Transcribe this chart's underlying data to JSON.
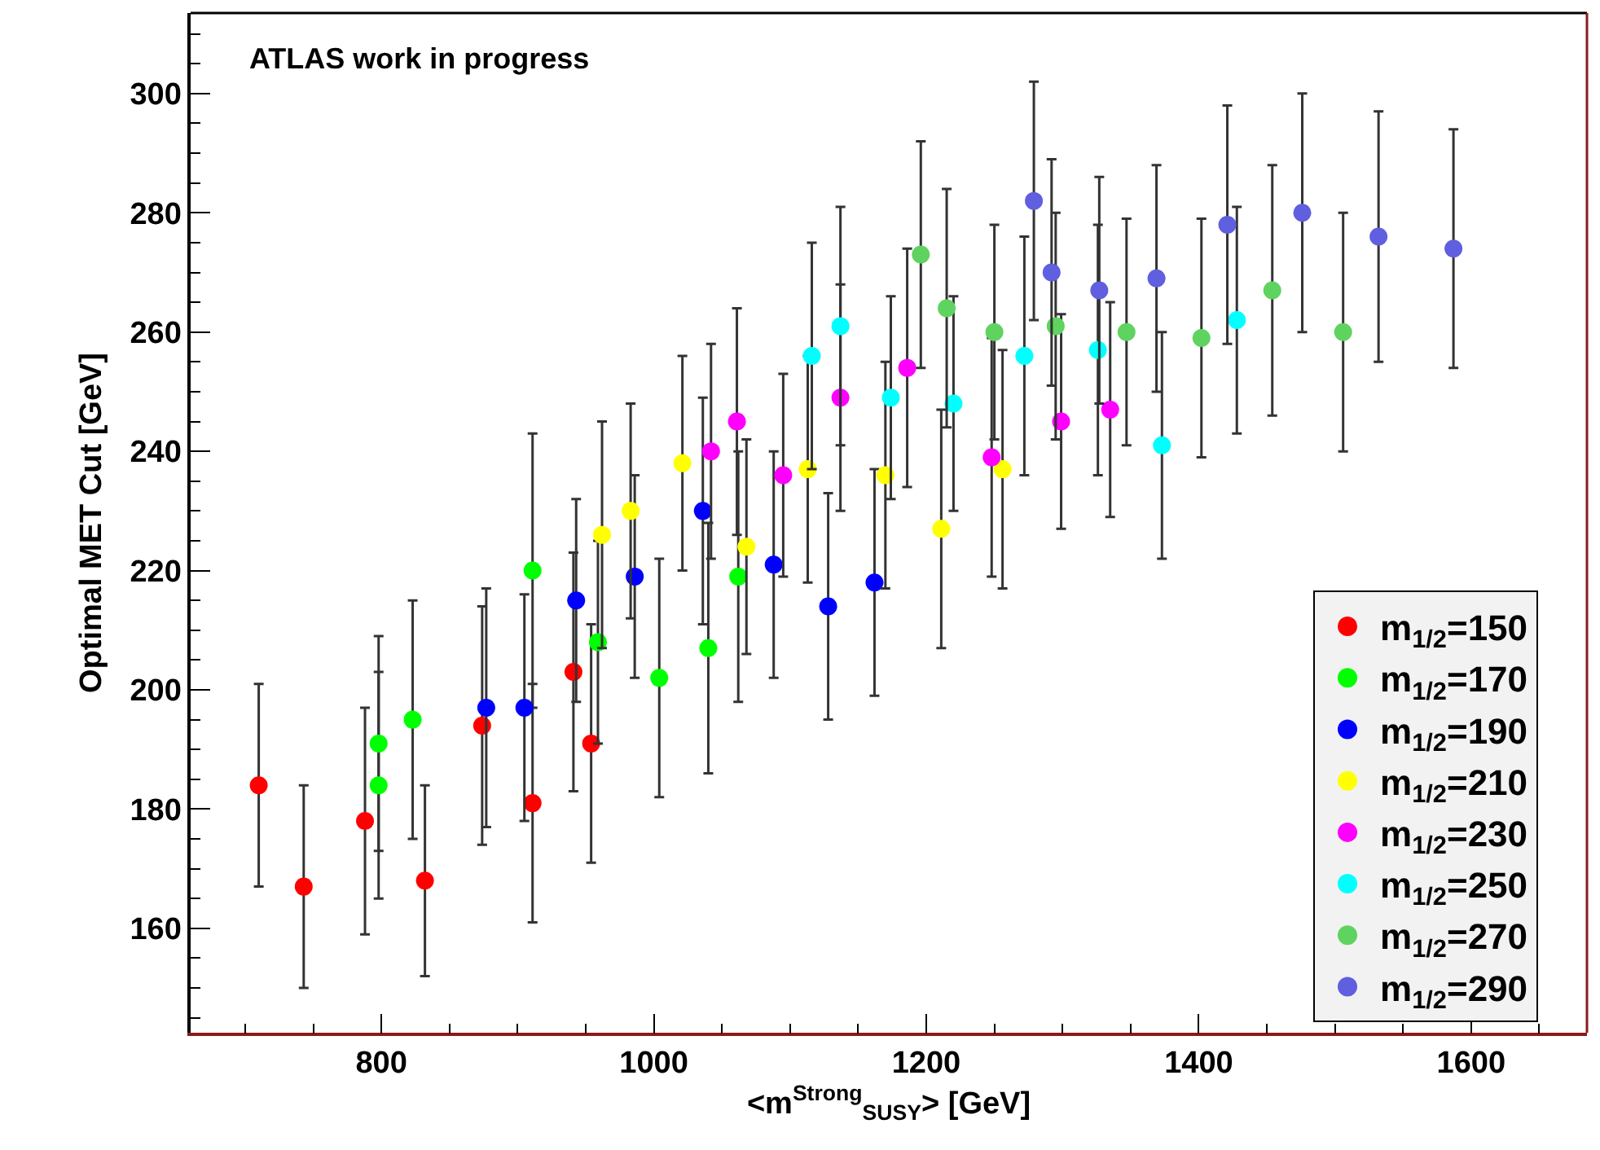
{
  "chart_data": {
    "type": "scatter",
    "xlabel": "<m$^{Strong}$$_{SUSY}$> [GeV]",
    "ylabel": "Optimal MET Cut [GeV]",
    "annotations": [
      "ATLAS work in progress"
    ],
    "xlim": [
      660,
      1685
    ],
    "xticks": [
      800,
      1000,
      1200,
      1400,
      1600
    ],
    "ylim": [
      142.5,
      313.5
    ],
    "yticks": [
      160,
      180,
      200,
      220,
      240,
      260,
      280,
      300
    ],
    "legend": "bottom right",
    "marker": "circle",
    "series": [
      {
        "name": "m$_{1/2}$=150",
        "color": "#ff0000",
        "x": [
          710,
          743,
          788,
          832,
          874,
          911,
          941,
          954
        ],
        "values": [
          184,
          167,
          178,
          168,
          194,
          181,
          203,
          191
        ],
        "errors": [
          17,
          17,
          19,
          16,
          20,
          20,
          20,
          20
        ]
      },
      {
        "name": "m$_{1/2}$=170",
        "color": "#00ff00",
        "x": [
          798,
          798,
          823,
          911,
          959,
          1004,
          1040,
          1062
        ],
        "values": [
          191,
          184,
          195,
          220,
          208,
          202,
          207,
          219
        ],
        "errors": [
          18,
          19,
          20,
          23,
          17,
          20,
          21,
          21
        ]
      },
      {
        "name": "m$_{1/2}$=190",
        "color": "#0000ff",
        "x": [
          877,
          905,
          943,
          986,
          1036,
          1088,
          1128,
          1162
        ],
        "values": [
          197,
          197,
          215,
          219,
          230,
          221,
          214,
          218
        ],
        "errors": [
          20,
          19,
          17,
          17,
          19,
          19,
          19,
          19
        ]
      },
      {
        "name": "m$_{1/2}$=210",
        "color": "#ffff00",
        "x": [
          962,
          983,
          1021,
          1068,
          1113,
          1170,
          1211,
          1256
        ],
        "values": [
          226,
          230,
          238,
          224,
          237,
          236,
          227,
          237
        ],
        "errors": [
          19,
          18,
          18,
          18,
          19,
          19,
          20,
          20
        ]
      },
      {
        "name": "m$_{1/2}$=230",
        "color": "#ff00ff",
        "x": [
          1042,
          1061,
          1095,
          1137,
          1186,
          1248,
          1299,
          1335
        ],
        "values": [
          240,
          245,
          236,
          249,
          254,
          239,
          245,
          247
        ],
        "errors": [
          18,
          19,
          17,
          19,
          20,
          20,
          18,
          18
        ]
      },
      {
        "name": "m$_{1/2}$=250",
        "color": "#00ffff",
        "x": [
          1116,
          1137,
          1174,
          1220,
          1272,
          1326,
          1373,
          1428
        ],
        "values": [
          256,
          261,
          249,
          248,
          256,
          257,
          241,
          262
        ],
        "errors": [
          19,
          20,
          17,
          18,
          20,
          21,
          19,
          19
        ]
      },
      {
        "name": "m$_{1/2}$=270",
        "color": "#5fd35f",
        "x": [
          1196,
          1215,
          1250,
          1295,
          1347,
          1402,
          1454,
          1506
        ],
        "values": [
          273,
          264,
          260,
          261,
          260,
          259,
          267,
          260
        ],
        "errors": [
          19,
          20,
          18,
          19,
          19,
          20,
          21,
          20
        ]
      },
      {
        "name": "m$_{1/2}$=290",
        "color": "#5f5fdf",
        "x": [
          1279,
          1292,
          1327,
          1369,
          1421,
          1476,
          1532,
          1587
        ],
        "values": [
          282,
          270,
          267,
          269,
          278,
          280,
          276,
          274
        ],
        "errors": [
          20,
          19,
          19,
          19,
          20,
          20,
          21,
          20
        ]
      }
    ]
  }
}
